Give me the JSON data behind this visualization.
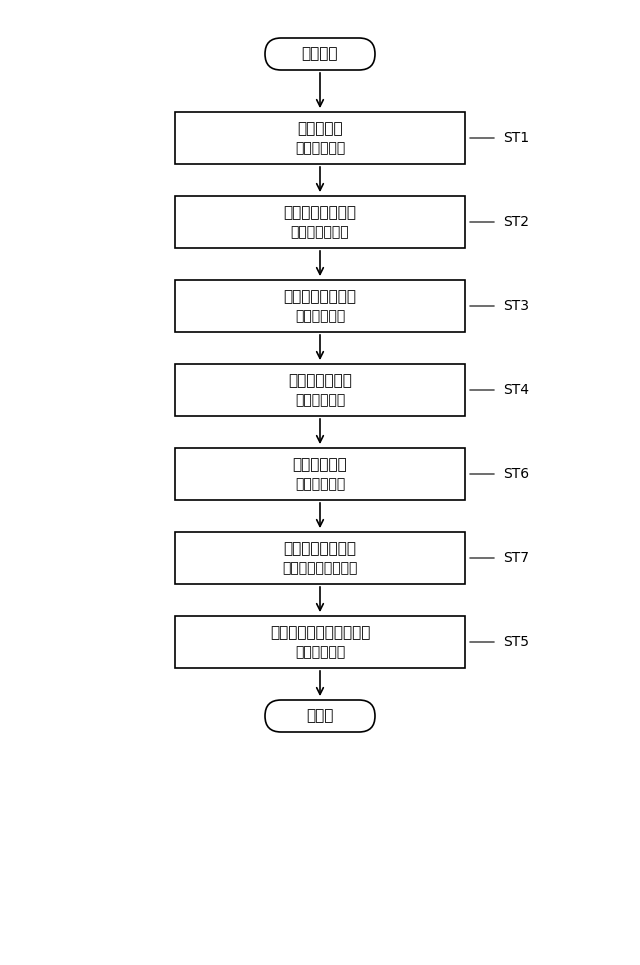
{
  "background_color": "#ffffff",
  "fig_width": 6.4,
  "fig_height": 9.65,
  "title_text": "",
  "start_label": "スタート",
  "end_label": "エンド",
  "steps": [
    {
      "line1": "半身に切断",
      "line2": "（切断工程）",
      "tag": "ST1"
    },
    {
      "line1": "半凍結または凍結",
      "line2": "（前処理工程）",
      "tag": "ST2"
    },
    {
      "line1": "切り込みを設ける",
      "line2": "（切込工程）",
      "tag": "ST3"
    },
    {
      "line1": "切り込みを開く",
      "line2": "（開き工程）",
      "tag": "ST4"
    },
    {
      "line1": "容器に載せる",
      "line2": "（載置工程）",
      "tag": "ST6"
    },
    {
      "line1": "真空パックにする",
      "line2": "（真空パック工程）",
      "tag": "ST7"
    },
    {
      "line1": "開いた状態の半身を凍結",
      "line2": "（凍結工程）",
      "tag": "ST5"
    }
  ],
  "box_color": "#ffffff",
  "box_edge_color": "#000000",
  "arrow_color": "#000000",
  "text_color": "#000000",
  "tag_color": "#000000",
  "font_size_main": 11,
  "font_size_sub": 10,
  "font_size_tag": 10,
  "font_size_terminal": 11
}
